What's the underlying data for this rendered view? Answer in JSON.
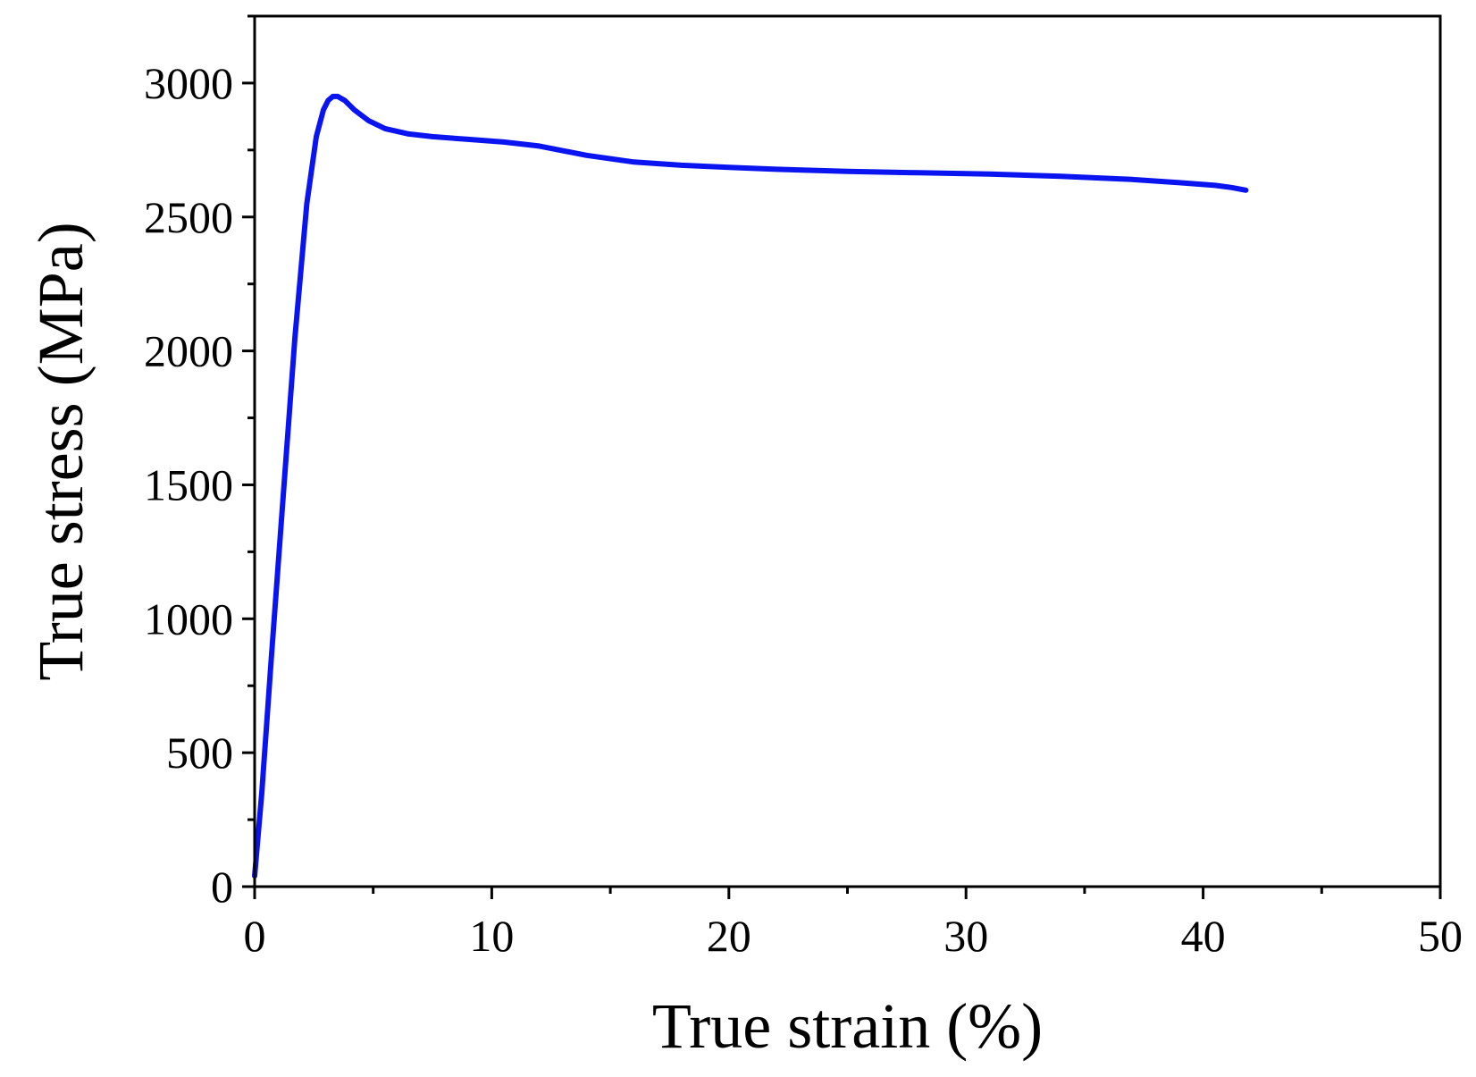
{
  "chart_data": {
    "type": "line",
    "title": "",
    "xlabel": "True strain (%)",
    "ylabel": "True stress (MPa)",
    "xlim": [
      0,
      50
    ],
    "ylim": [
      0,
      3250
    ],
    "xticks": [
      0,
      10,
      20,
      30,
      40,
      50
    ],
    "xtick_labels": [
      "0",
      "10",
      "20",
      "30",
      "40",
      "50"
    ],
    "yticks": [
      0,
      500,
      1000,
      1500,
      2000,
      2500,
      3000
    ],
    "ytick_labels": [
      "0",
      "500",
      "1000",
      "1500",
      "2000",
      "2500",
      "3000"
    ],
    "grid": false,
    "legend": "none",
    "series": [
      {
        "color": "#0a14f0",
        "x": [
          0.0,
          0.3,
          0.7,
          1.2,
          1.7,
          2.2,
          2.6,
          2.9,
          3.1,
          3.3,
          3.5,
          3.8,
          4.2,
          4.8,
          5.5,
          6.5,
          7.5,
          9.0,
          10.5,
          12.0,
          14.0,
          16.0,
          18.0,
          20.0,
          22.0,
          25.0,
          28.0,
          31.0,
          34.0,
          37.0,
          39.0,
          40.5,
          41.2,
          41.8
        ],
        "y": [
          40,
          350,
          850,
          1450,
          2050,
          2550,
          2800,
          2900,
          2935,
          2950,
          2950,
          2935,
          2900,
          2860,
          2830,
          2810,
          2800,
          2790,
          2780,
          2765,
          2730,
          2705,
          2693,
          2685,
          2678,
          2670,
          2665,
          2660,
          2652,
          2640,
          2628,
          2618,
          2610,
          2600
        ]
      }
    ]
  }
}
